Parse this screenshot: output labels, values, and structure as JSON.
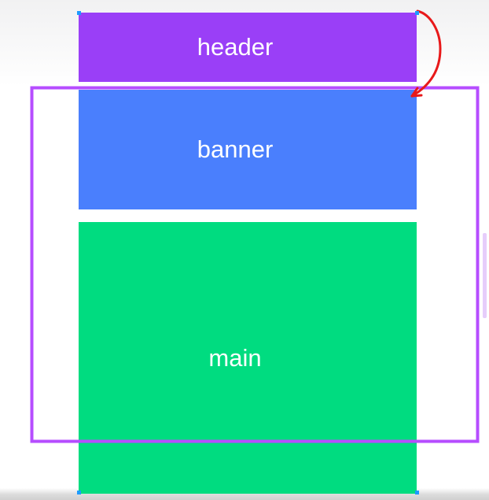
{
  "blocks": {
    "header": {
      "label": "header",
      "color": "#9a3ff7"
    },
    "banner": {
      "label": "banner",
      "color": "#4a7ffd"
    },
    "main": {
      "label": "main",
      "color": "#00dc80"
    }
  },
  "annotations": {
    "outline_color": "#b64dff",
    "arrow_color": "#e8191a",
    "handle_color": "#1e9bff"
  }
}
